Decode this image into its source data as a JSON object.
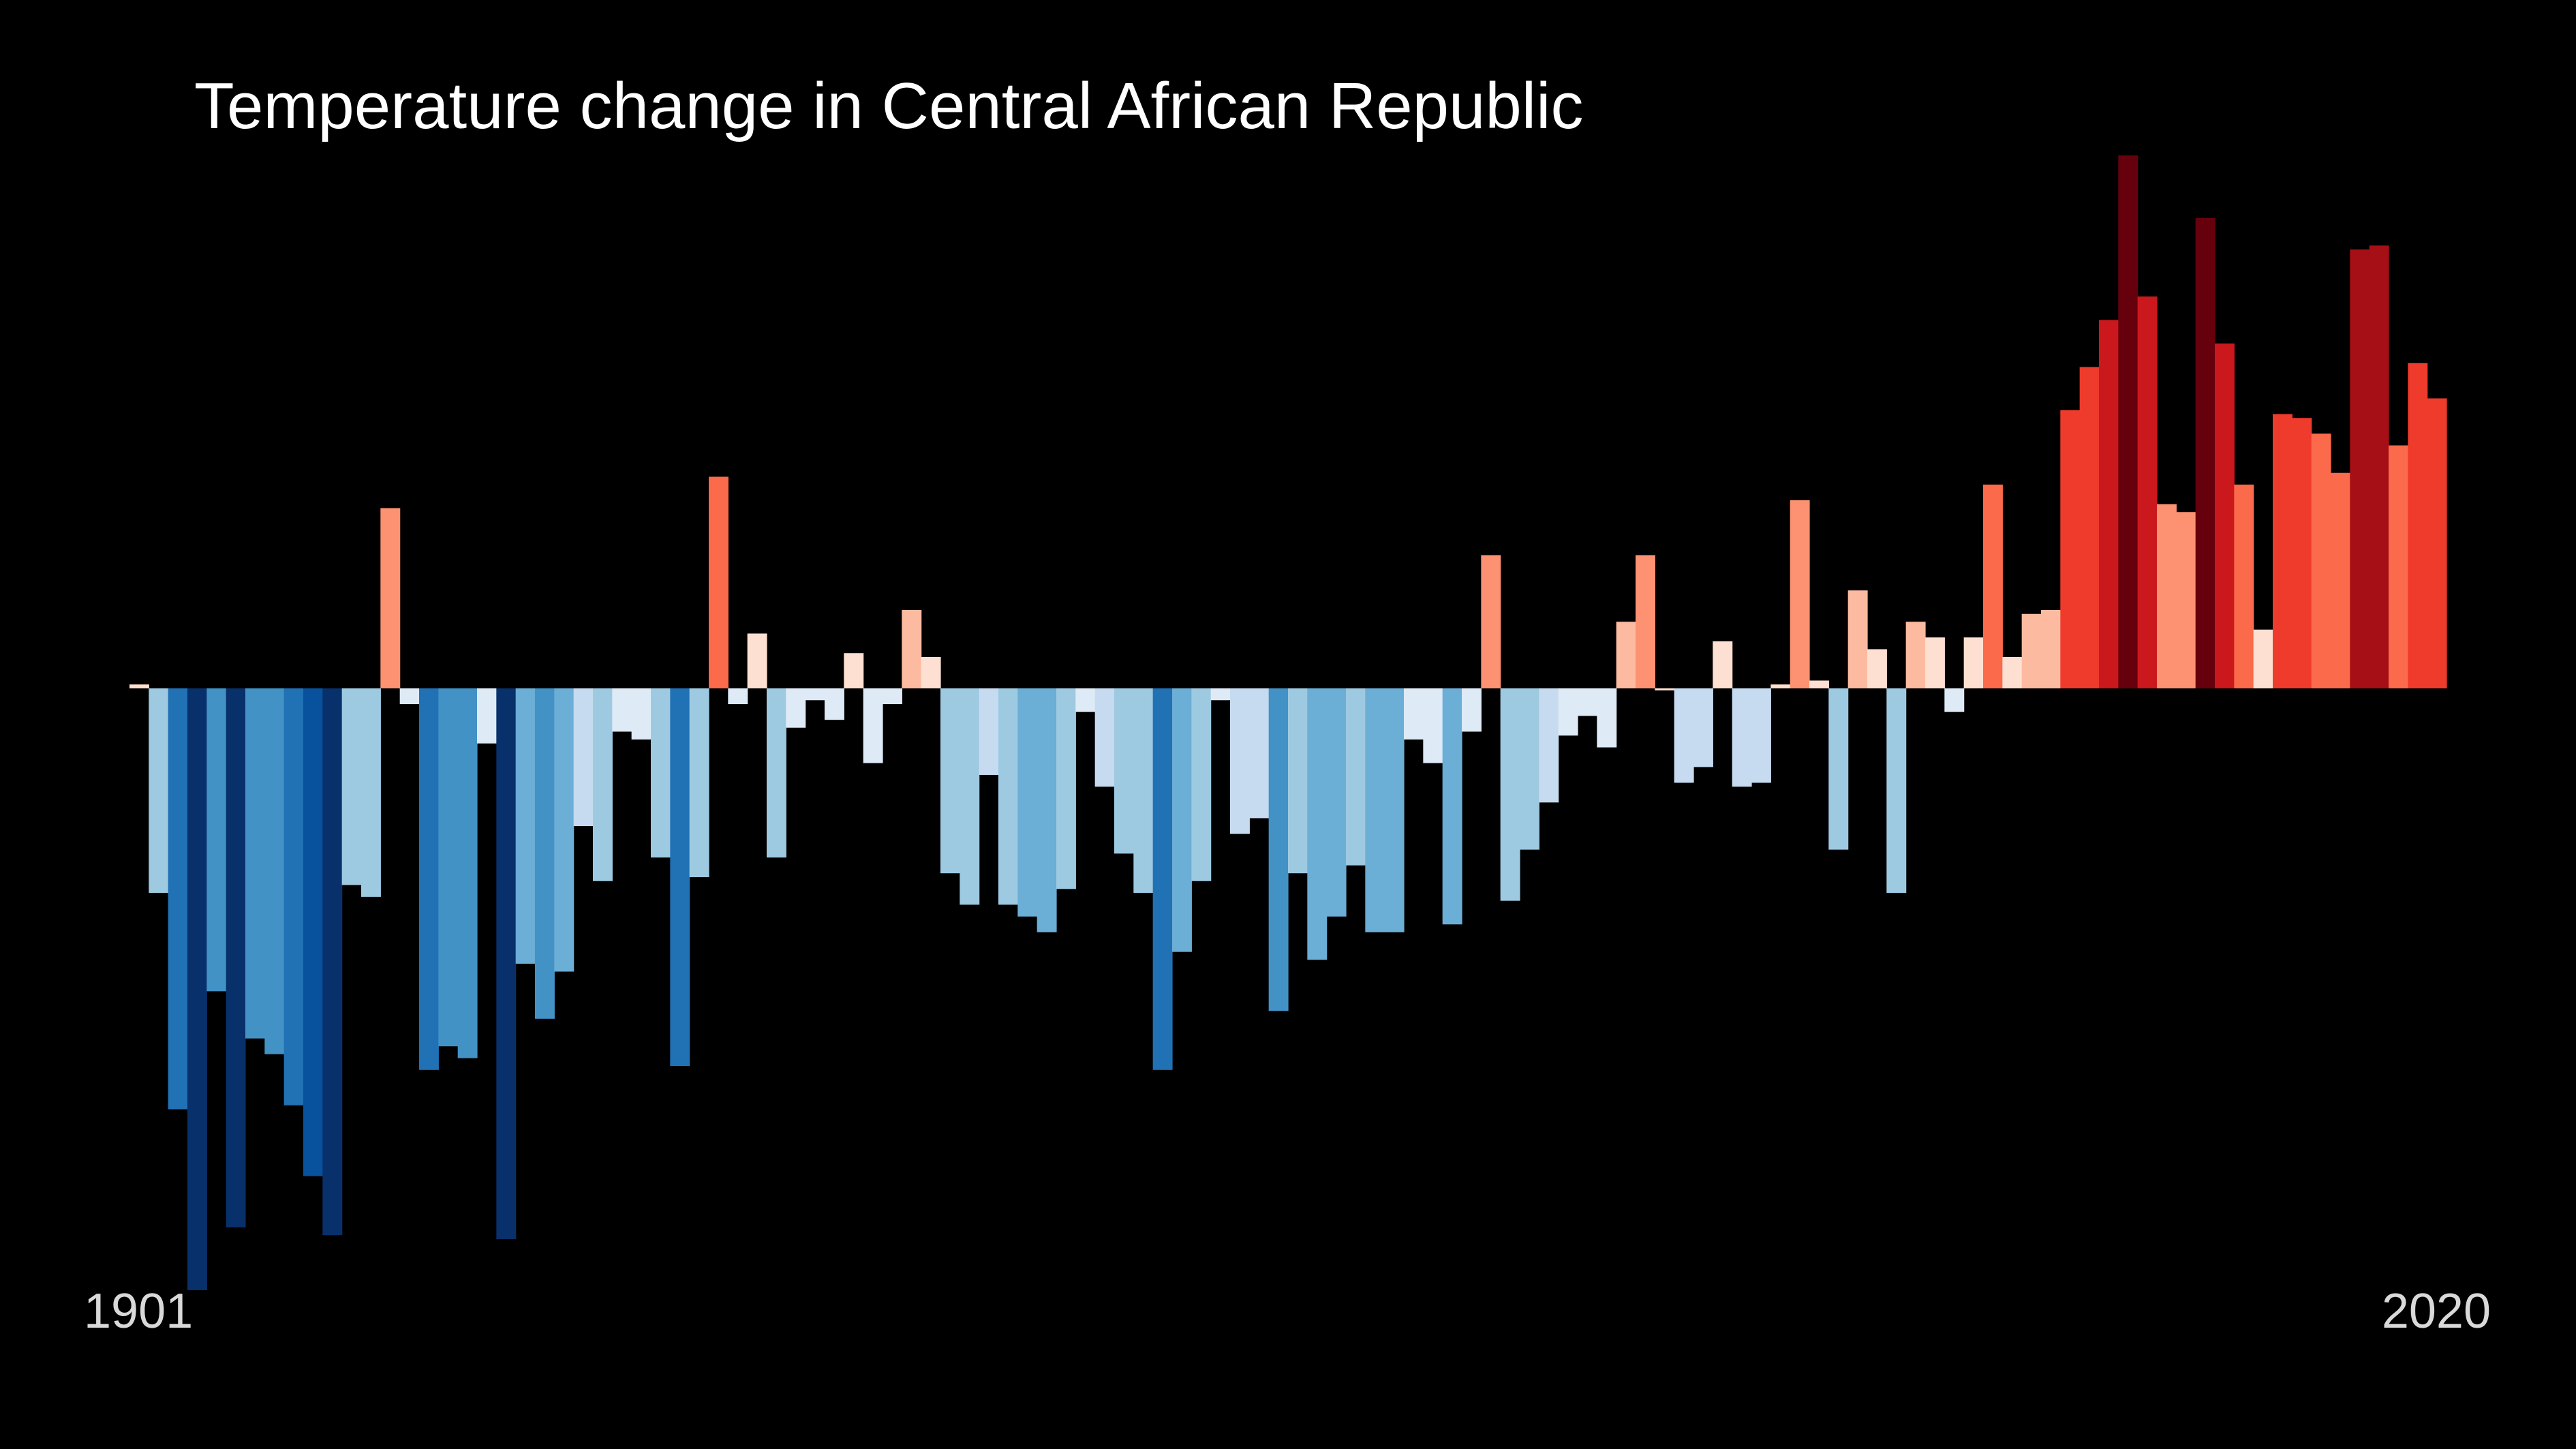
{
  "chart_data": {
    "type": "bar",
    "title": "Temperature change in Central African Republic",
    "start_label": "1901",
    "end_label": "2020",
    "categories_range": [
      1901,
      2020
    ],
    "ylabel": "",
    "xlabel": "",
    "ylim": [
      -1.53,
      1.36
    ],
    "grid": false,
    "legend": "none",
    "background": "#000000",
    "values": [
      0.01,
      -0.52,
      -1.07,
      -1.53,
      -0.77,
      -1.37,
      -0.89,
      -0.93,
      -1.06,
      -1.24,
      -1.39,
      -0.5,
      -0.53,
      0.46,
      -0.04,
      -0.97,
      -0.91,
      -0.94,
      -0.14,
      -1.4,
      -0.7,
      -0.84,
      -0.72,
      -0.35,
      -0.49,
      -0.11,
      -0.13,
      -0.43,
      -0.96,
      -0.48,
      0.54,
      -0.04,
      0.14,
      -0.43,
      -0.1,
      -0.03,
      -0.08,
      0.09,
      -0.19,
      -0.04,
      0.2,
      0.08,
      -0.47,
      -0.55,
      -0.22,
      -0.55,
      -0.58,
      -0.62,
      -0.51,
      -0.06,
      -0.25,
      -0.42,
      -0.52,
      -0.97,
      -0.67,
      -0.49,
      -0.03,
      -0.37,
      -0.33,
      -0.82,
      -0.47,
      -0.69,
      -0.58,
      -0.45,
      -0.62,
      -0.62,
      -0.13,
      -0.19,
      -0.6,
      -0.11,
      0.34,
      -0.54,
      -0.41,
      -0.29,
      -0.12,
      -0.07,
      -0.15,
      0.17,
      0.34,
      0.0,
      -0.24,
      -0.2,
      0.12,
      -0.25,
      -0.24,
      0.01,
      0.48,
      0.02,
      -0.41,
      0.25,
      0.1,
      -0.52,
      0.17,
      0.13,
      -0.06,
      0.13,
      0.52,
      0.08,
      0.19,
      0.2,
      0.71,
      0.82,
      0.94,
      1.36,
      1.0,
      0.47,
      0.45,
      1.2,
      0.88,
      0.52,
      0.15,
      0.7,
      0.69,
      0.65,
      0.55,
      1.12,
      1.13,
      0.62,
      0.83,
      0.74
    ],
    "color_scale": {
      "cold": [
        "#08306b",
        "#08519c",
        "#2171b5",
        "#4292c6",
        "#6baed6",
        "#9ecae1",
        "#c6dbef",
        "#deebf7"
      ],
      "warm": [
        "#fee0d2",
        "#fcbba1",
        "#fc9272",
        "#fb6a4a",
        "#ef3b2c",
        "#cb181d",
        "#a50f15",
        "#67000d"
      ]
    }
  }
}
